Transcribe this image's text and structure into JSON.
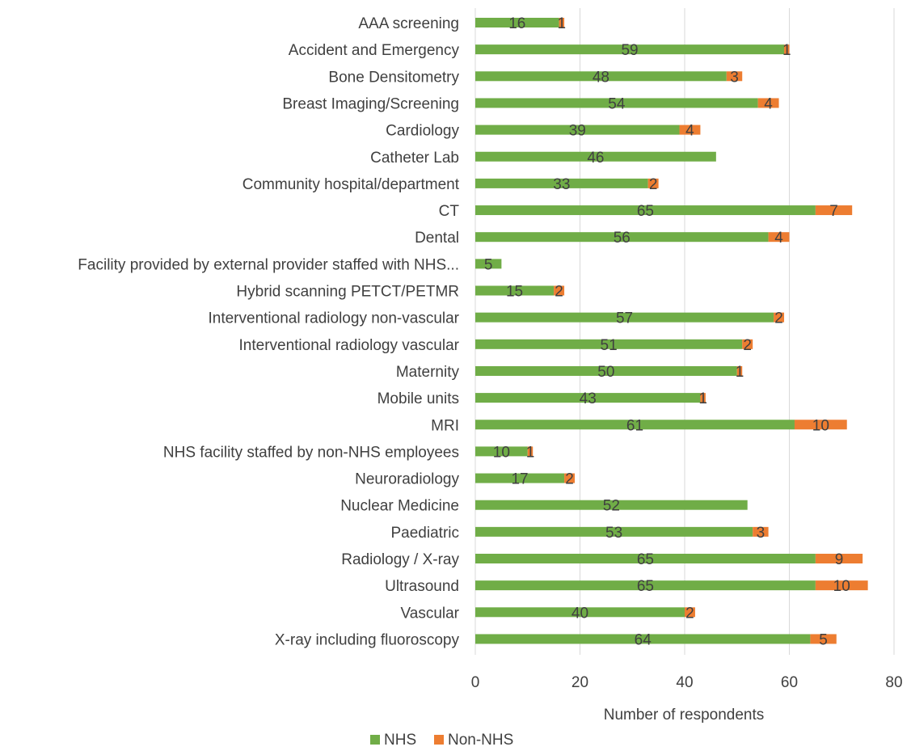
{
  "chart_data": {
    "type": "bar",
    "orientation": "horizontal",
    "stacked": true,
    "categories": [
      "AAA screening",
      "Accident and Emergency",
      "Bone Densitometry",
      "Breast Imaging/Screening",
      "Cardiology",
      "Catheter Lab",
      "Community hospital/department",
      "CT",
      "Dental",
      "Facility provided by external provider staffed with NHS...",
      "Hybrid scanning PETCT/PETMR",
      "Interventional radiology non-vascular",
      "Interventional radiology vascular",
      "Maternity",
      "Mobile units",
      "MRI",
      "NHS facility staffed by non-NHS employees",
      "Neuroradiology",
      "Nuclear Medicine",
      "Paediatric",
      "Radiology / X-ray",
      "Ultrasound",
      "Vascular",
      "X-ray including fluoroscopy"
    ],
    "series": [
      {
        "name": "NHS",
        "color": "#70ad47",
        "values": [
          16,
          59,
          48,
          54,
          39,
          46,
          33,
          65,
          56,
          5,
          15,
          57,
          51,
          50,
          43,
          61,
          10,
          17,
          52,
          53,
          65,
          65,
          40,
          64
        ]
      },
      {
        "name": "Non-NHS",
        "color": "#ed7d31",
        "values": [
          1,
          1,
          3,
          4,
          4,
          null,
          2,
          7,
          4,
          null,
          2,
          2,
          2,
          1,
          1,
          10,
          1,
          2,
          null,
          3,
          9,
          10,
          2,
          5
        ]
      }
    ],
    "xlabel": "Number of respondents",
    "xlim": [
      0,
      80
    ],
    "xticks": [
      0,
      20,
      40,
      60,
      80
    ],
    "grid": true,
    "legend_position": "bottom"
  }
}
